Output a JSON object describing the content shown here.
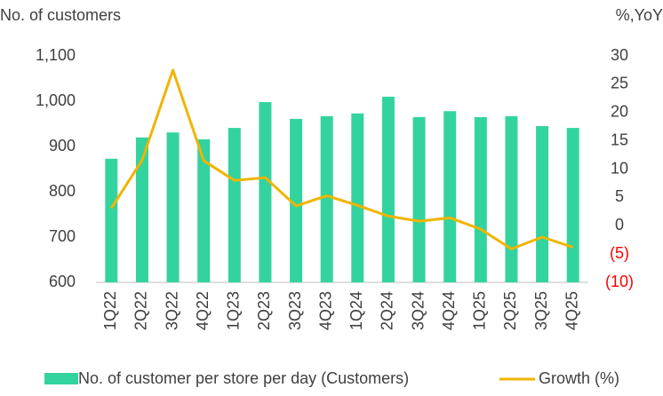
{
  "chart_data": {
    "type": "bar-line",
    "y_label": "No. of customers",
    "y2_label": "%,YoY",
    "categories": [
      "1Q22",
      "2Q22",
      "3Q22",
      "4Q22",
      "1Q23",
      "2Q23",
      "3Q23",
      "4Q23",
      "1Q24",
      "2Q24",
      "3Q24",
      "4Q24",
      "1Q25",
      "2Q25",
      "3Q25",
      "4Q25"
    ],
    "series": [
      {
        "name": "No. of customer per store per day (Customers)",
        "type": "bar",
        "color": "#33d39f",
        "values": [
          873,
          920,
          931,
          916,
          941,
          998,
          961,
          967,
          973,
          1010,
          965,
          978,
          965,
          967,
          945,
          941
        ]
      },
      {
        "name": "Growth (%)",
        "type": "line",
        "axis": "y2",
        "color": "#f0b400",
        "values": [
          3.1,
          11.6,
          27.5,
          11.5,
          8.0,
          8.5,
          3.5,
          5.3,
          3.6,
          1.7,
          0.8,
          1.4,
          -0.6,
          -4.1,
          -2.0,
          -3.8
        ]
      }
    ],
    "ylim": [
      600,
      1100
    ],
    "yticks": [
      600,
      700,
      800,
      900,
      {
        "value": 1000,
        "label": "1,000"
      },
      {
        "value": 1100,
        "label": "1,100"
      }
    ],
    "y2lim": [
      -10,
      30
    ],
    "y2ticks": [
      {
        "value": -10,
        "label": "(10)"
      },
      {
        "value": -5,
        "label": "(5)"
      },
      0,
      5,
      10,
      15,
      20,
      25,
      30
    ],
    "negative_tick_color": "#ff0000",
    "legend": "bottom"
  }
}
